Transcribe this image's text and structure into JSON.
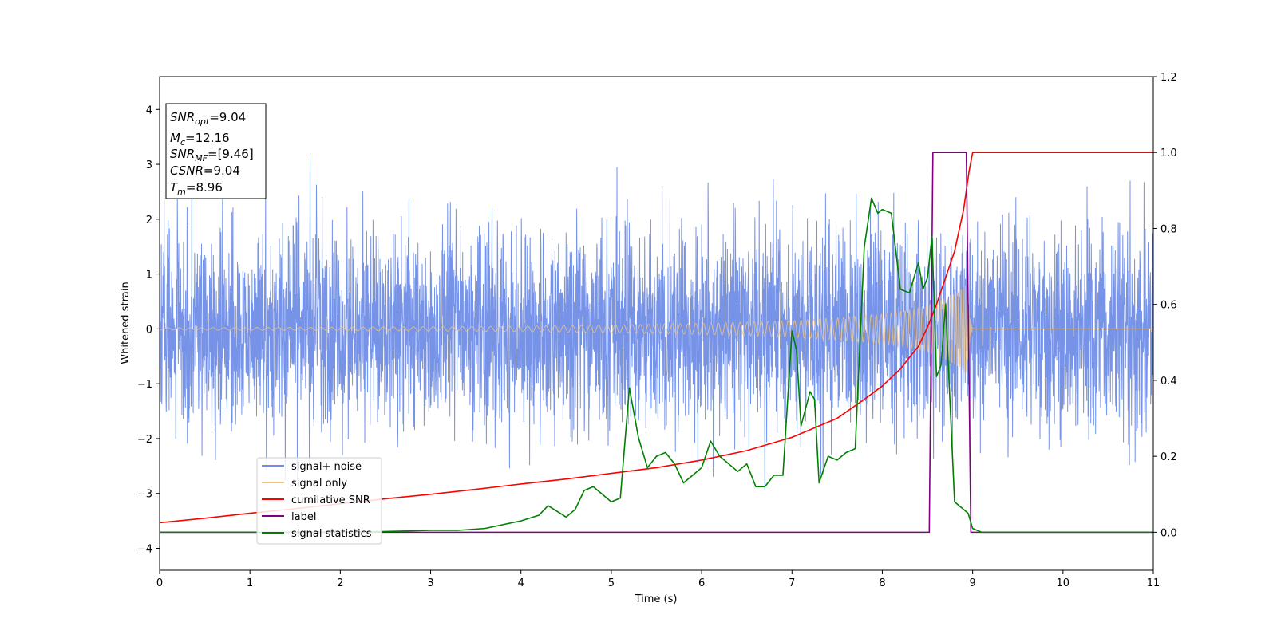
{
  "chart_data": {
    "type": "line",
    "title": "",
    "xlabel": "Time (s)",
    "ylabel": "Whitened strain",
    "ylabel_right": "",
    "xlim": [
      0,
      11
    ],
    "ylim_left": [
      -4.4,
      4.6
    ],
    "ylim_right": [
      -0.1,
      1.2
    ],
    "x_ticks": [
      "0",
      "1",
      "2",
      "3",
      "4",
      "5",
      "6",
      "7",
      "8",
      "9",
      "10",
      "11"
    ],
    "y_ticks_left": [
      "−4",
      "−3",
      "−2",
      "−1",
      "0",
      "1",
      "2",
      "3",
      "4"
    ],
    "y_ticks_right": [
      "0.0",
      "0.2",
      "0.4",
      "0.6",
      "0.8",
      "1.0",
      "1.2"
    ],
    "grid": false,
    "legend_position": "lower-left",
    "info_box": {
      "snr_opt": {
        "base": "SNR",
        "sub": "opt",
        "value": "=9.04"
      },
      "mc": {
        "base": "M",
        "sub": "c",
        "value": "=12.16"
      },
      "snr_mf": {
        "base": "SNR",
        "sub": "MF",
        "value": "=[9.46]"
      },
      "csnr": {
        "base": "CSNR",
        "sub": "",
        "value": "=9.04"
      },
      "tm": {
        "base": "T",
        "sub": "m",
        "value": "=8.96"
      }
    },
    "series": [
      {
        "name": "signal+ noise",
        "axis": "left",
        "color": "#6f8de6",
        "noise_sigma": 0.9,
        "x_range": [
          0,
          11
        ]
      },
      {
        "name": "signal only",
        "axis": "left",
        "color": "#f5c77e",
        "envelope_x": [
          0,
          2,
          4,
          5,
          6,
          7,
          7.5,
          8,
          8.3,
          8.5,
          8.7,
          8.85,
          8.94,
          8.96,
          9.0,
          11
        ],
        "envelope_y": [
          0.02,
          0.03,
          0.05,
          0.07,
          0.1,
          0.15,
          0.2,
          0.27,
          0.34,
          0.42,
          0.56,
          0.7,
          0.82,
          0.3,
          0.0,
          0.0
        ]
      },
      {
        "name": "cumilative SNR",
        "axis": "right",
        "color": "#ff0000",
        "x": [
          0,
          0.5,
          1,
          1.5,
          2,
          2.5,
          3,
          3.5,
          4,
          4.5,
          5,
          5.5,
          6,
          6.5,
          7,
          7.5,
          7.8,
          8,
          8.2,
          8.4,
          8.5,
          8.6,
          8.7,
          8.8,
          8.9,
          8.96,
          9.0,
          11
        ],
        "y": [
          0.025,
          0.037,
          0.05,
          0.062,
          0.075,
          0.088,
          0.1,
          0.113,
          0.127,
          0.14,
          0.155,
          0.17,
          0.19,
          0.215,
          0.25,
          0.3,
          0.35,
          0.385,
          0.43,
          0.49,
          0.54,
          0.6,
          0.67,
          0.74,
          0.85,
          0.95,
          1.0,
          1.0
        ]
      },
      {
        "name": "label",
        "axis": "right",
        "color": "#800080",
        "x": [
          0,
          8.52,
          8.56,
          8.93,
          8.98,
          11
        ],
        "y": [
          0.0,
          0.0,
          1.0,
          1.0,
          0.0,
          0.0
        ]
      },
      {
        "name": "signal statistics",
        "axis": "right",
        "color": "#008000",
        "x": [
          0,
          2,
          2.5,
          3,
          3.3,
          3.6,
          3.8,
          4.0,
          4.2,
          4.3,
          4.4,
          4.5,
          4.6,
          4.7,
          4.8,
          4.9,
          5.0,
          5.1,
          5.2,
          5.3,
          5.4,
          5.5,
          5.6,
          5.7,
          5.8,
          5.9,
          6.0,
          6.1,
          6.2,
          6.3,
          6.4,
          6.5,
          6.6,
          6.7,
          6.8,
          6.9,
          7.0,
          7.05,
          7.1,
          7.2,
          7.25,
          7.3,
          7.4,
          7.5,
          7.6,
          7.7,
          7.8,
          7.88,
          7.95,
          8.0,
          8.1,
          8.2,
          8.3,
          8.4,
          8.45,
          8.5,
          8.55,
          8.6,
          8.65,
          8.7,
          8.8,
          8.9,
          8.95,
          9.0,
          9.1,
          9.3,
          11
        ],
        "y": [
          0.0,
          0.0,
          0.002,
          0.005,
          0.005,
          0.01,
          0.02,
          0.03,
          0.045,
          0.07,
          0.055,
          0.04,
          0.06,
          0.11,
          0.12,
          0.1,
          0.08,
          0.09,
          0.38,
          0.25,
          0.17,
          0.2,
          0.21,
          0.18,
          0.13,
          0.15,
          0.17,
          0.24,
          0.2,
          0.18,
          0.16,
          0.18,
          0.12,
          0.12,
          0.15,
          0.15,
          0.53,
          0.48,
          0.28,
          0.37,
          0.35,
          0.13,
          0.2,
          0.19,
          0.21,
          0.22,
          0.75,
          0.88,
          0.84,
          0.85,
          0.84,
          0.64,
          0.63,
          0.71,
          0.64,
          0.67,
          0.78,
          0.41,
          0.44,
          0.6,
          0.08,
          0.06,
          0.05,
          0.01,
          0.0,
          0.0,
          0.0
        ]
      }
    ]
  }
}
